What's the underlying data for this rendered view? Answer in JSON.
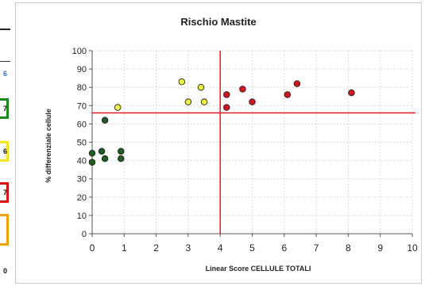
{
  "side_panel": {
    "chars": [
      "6",
      "7",
      "6",
      "7",
      "0"
    ],
    "box_colors": [
      "#1a8a1a",
      "#f4e41a",
      "#e01010",
      "#f5a00a"
    ]
  },
  "chart_data": {
    "type": "scatter",
    "title": "Rischio Mastite",
    "xlabel": "Linear Score CELLULE TOTALI",
    "ylabel": "% differenziale cellule",
    "xlim": [
      0,
      10
    ],
    "ylim": [
      0,
      100
    ],
    "x_ticks": [
      0,
      1,
      2,
      3,
      4,
      5,
      6,
      7,
      8,
      9,
      10
    ],
    "y_ticks": [
      0,
      10,
      20,
      30,
      40,
      50,
      60,
      70,
      80,
      90,
      100
    ],
    "grid": true,
    "reference_lines": {
      "vertical_x": 4,
      "horizontal_y": 66,
      "color": "#e01c1c"
    },
    "points": [
      {
        "x": 0.0,
        "y": 44,
        "color": "#1e5e1e"
      },
      {
        "x": 0.0,
        "y": 39,
        "color": "#1e5e1e"
      },
      {
        "x": 0.3,
        "y": 45,
        "color": "#1e5e1e"
      },
      {
        "x": 0.4,
        "y": 41,
        "color": "#1e5e1e"
      },
      {
        "x": 0.4,
        "y": 62,
        "color": "#1e5e1e"
      },
      {
        "x": 0.9,
        "y": 45,
        "color": "#1e5e1e"
      },
      {
        "x": 0.9,
        "y": 41,
        "color": "#1e5e1e"
      },
      {
        "x": 0.8,
        "y": 69,
        "color": "#f2f23a"
      },
      {
        "x": 2.8,
        "y": 83,
        "color": "#f2f23a"
      },
      {
        "x": 3.0,
        "y": 72,
        "color": "#f2f23a"
      },
      {
        "x": 3.4,
        "y": 80,
        "color": "#f2f23a"
      },
      {
        "x": 3.5,
        "y": 72,
        "color": "#f2f23a"
      },
      {
        "x": 4.2,
        "y": 76,
        "color": "#d7141c"
      },
      {
        "x": 4.2,
        "y": 69,
        "color": "#d7141c"
      },
      {
        "x": 4.7,
        "y": 79,
        "color": "#d7141c"
      },
      {
        "x": 5.0,
        "y": 72,
        "color": "#d7141c"
      },
      {
        "x": 6.1,
        "y": 76,
        "color": "#d7141c"
      },
      {
        "x": 6.4,
        "y": 82,
        "color": "#d7141c"
      },
      {
        "x": 8.1,
        "y": 77,
        "color": "#d7141c"
      }
    ]
  }
}
